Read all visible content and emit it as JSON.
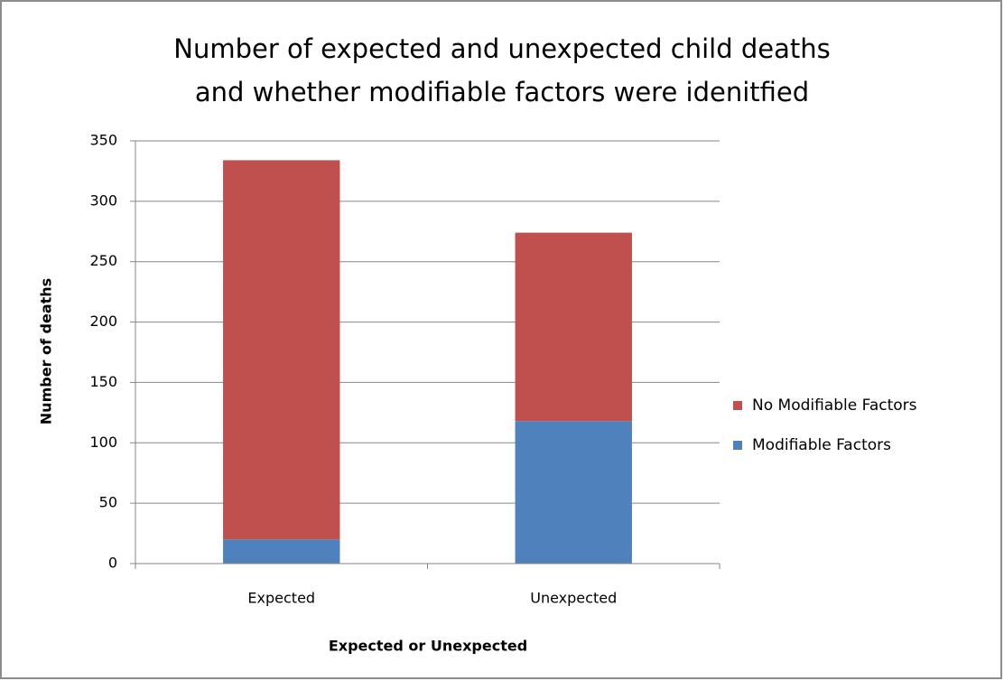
{
  "chart_data": {
    "type": "stacked_bar",
    "title": [
      "Number of expected and unexpected child deaths",
      "and whether modifiable factors were idenitfied"
    ],
    "x_label": "Expected or Unexpected",
    "y_label": "Number of deaths",
    "categories": [
      "Expected",
      "Unexpected"
    ],
    "series": [
      {
        "name": "Modifiable Factors",
        "color": "#4f81bd",
        "values": [
          20,
          118
        ]
      },
      {
        "name": "No Modifiable Factors",
        "color": "#c0504d",
        "values": [
          314,
          156
        ]
      }
    ],
    "ylim": [
      0,
      350
    ],
    "yticks": [
      0,
      50,
      100,
      150,
      200,
      250,
      300,
      350
    ],
    "grid": true,
    "legend": "right"
  }
}
